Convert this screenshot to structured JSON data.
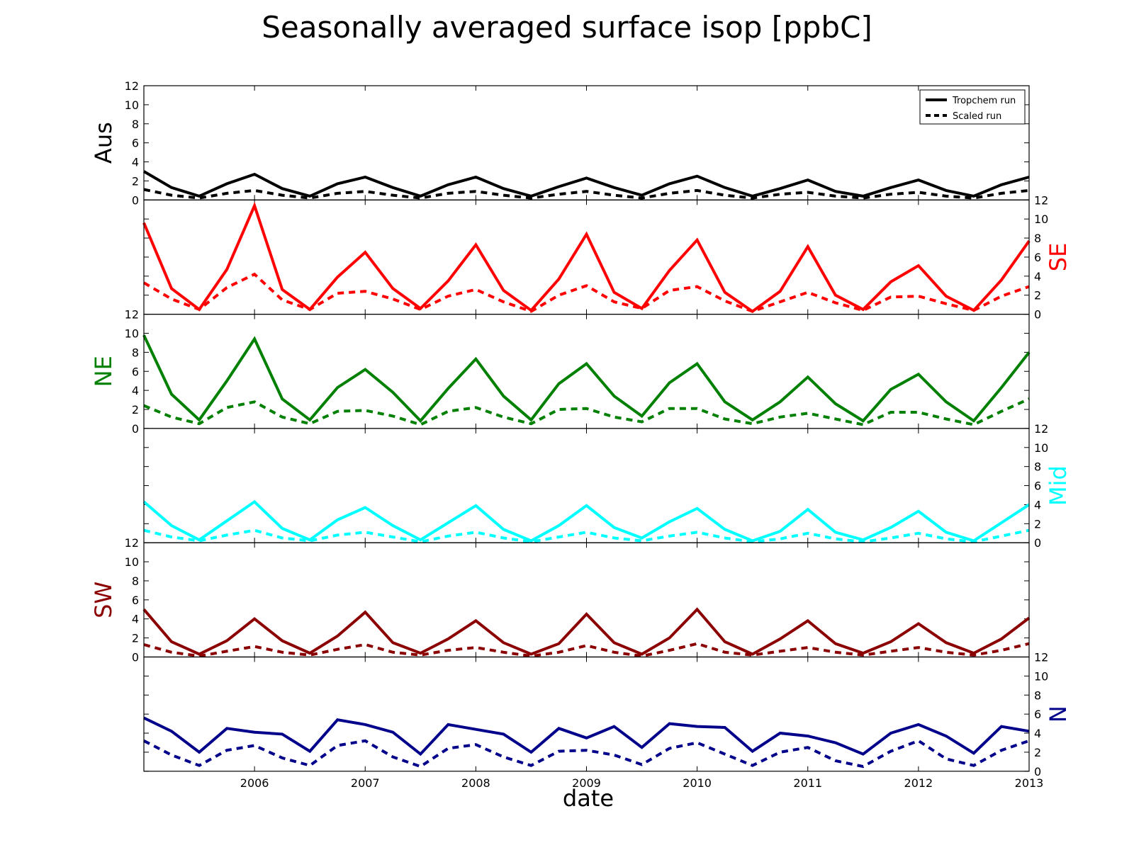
{
  "chart_data": {
    "type": "line",
    "title": "Seasonally averaged surface isop [ppbC]",
    "xlabel": "date",
    "x": [
      "2005-01",
      "2005-04",
      "2005-07",
      "2005-10",
      "2006-01",
      "2006-04",
      "2006-07",
      "2006-10",
      "2007-01",
      "2007-04",
      "2007-07",
      "2007-10",
      "2008-01",
      "2008-04",
      "2008-07",
      "2008-10",
      "2009-01",
      "2009-04",
      "2009-07",
      "2009-10",
      "2010-01",
      "2010-04",
      "2010-07",
      "2010-10",
      "2011-01",
      "2011-04",
      "2011-07",
      "2011-10",
      "2012-01",
      "2012-04",
      "2012-07",
      "2012-10",
      "2013-01"
    ],
    "x_tick_labels": [
      "2006",
      "2007",
      "2008",
      "2009",
      "2010",
      "2011",
      "2012",
      "2013"
    ],
    "ylim": [
      0,
      12
    ],
    "y_tick_labels": [
      "0",
      "2",
      "4",
      "6",
      "8",
      "10",
      "12"
    ],
    "legend": {
      "position": "top-right",
      "entries": [
        {
          "label": "Tropchem run",
          "style": "solid"
        },
        {
          "label": "Scaled run",
          "style": "dashed"
        }
      ]
    },
    "panels": [
      {
        "region": "Aus",
        "color": "#000000",
        "axis_side": "left",
        "series": [
          {
            "name": "Tropchem run",
            "values": [
              3.0,
              1.3,
              0.4,
              1.7,
              2.7,
              1.2,
              0.4,
              1.7,
              2.4,
              1.3,
              0.4,
              1.6,
              2.4,
              1.2,
              0.4,
              1.4,
              2.3,
              1.3,
              0.5,
              1.7,
              2.5,
              1.3,
              0.4,
              1.2,
              2.1,
              0.9,
              0.4,
              1.3,
              2.1,
              1.0,
              0.4,
              1.6,
              2.4
            ]
          },
          {
            "name": "Scaled run",
            "values": [
              1.1,
              0.5,
              0.2,
              0.7,
              1.0,
              0.5,
              0.2,
              0.7,
              0.9,
              0.5,
              0.2,
              0.7,
              0.9,
              0.5,
              0.2,
              0.6,
              0.9,
              0.5,
              0.2,
              0.7,
              1.0,
              0.5,
              0.2,
              0.6,
              0.8,
              0.4,
              0.2,
              0.6,
              0.8,
              0.4,
              0.2,
              0.7,
              1.0
            ]
          }
        ]
      },
      {
        "region": "SE",
        "color": "#ff0000",
        "axis_side": "right",
        "series": [
          {
            "name": "Tropchem run",
            "values": [
              9.6,
              2.7,
              0.5,
              4.7,
              11.4,
              2.6,
              0.5,
              3.9,
              6.5,
              2.7,
              0.6,
              3.5,
              7.3,
              2.5,
              0.4,
              3.7,
              8.4,
              2.3,
              0.6,
              4.6,
              7.8,
              2.3,
              0.3,
              2.4,
              7.1,
              2.0,
              0.5,
              3.4,
              5.1,
              1.9,
              0.4,
              3.6,
              7.7
            ]
          },
          {
            "name": "Scaled run",
            "values": [
              3.3,
              1.6,
              0.5,
              2.8,
              4.2,
              1.5,
              0.5,
              2.2,
              2.4,
              1.6,
              0.5,
              1.9,
              2.6,
              1.3,
              0.3,
              2.0,
              3.0,
              1.3,
              0.6,
              2.5,
              2.9,
              1.4,
              0.3,
              1.3,
              2.3,
              1.2,
              0.4,
              1.8,
              1.9,
              1.1,
              0.4,
              1.9,
              2.9
            ]
          }
        ]
      },
      {
        "region": "NE",
        "color": "#008000",
        "axis_side": "left",
        "series": [
          {
            "name": "Tropchem run",
            "values": [
              9.8,
              3.6,
              0.9,
              5.0,
              9.4,
              3.1,
              0.9,
              4.3,
              6.2,
              3.8,
              0.8,
              4.2,
              7.3,
              3.4,
              0.9,
              4.7,
              6.8,
              3.4,
              1.3,
              4.8,
              6.8,
              2.8,
              0.9,
              2.8,
              5.4,
              2.6,
              0.8,
              4.1,
              5.7,
              2.8,
              0.8,
              4.3,
              8.0
            ]
          },
          {
            "name": "Scaled run",
            "values": [
              2.4,
              1.2,
              0.5,
              2.2,
              2.8,
              1.2,
              0.5,
              1.8,
              1.9,
              1.3,
              0.4,
              1.8,
              2.2,
              1.2,
              0.5,
              2.0,
              2.1,
              1.2,
              0.7,
              2.1,
              2.1,
              1.0,
              0.5,
              1.2,
              1.6,
              1.0,
              0.4,
              1.7,
              1.7,
              1.0,
              0.4,
              1.8,
              3.1
            ]
          }
        ]
      },
      {
        "region": "Mid",
        "color": "#00ffff",
        "axis_side": "right",
        "series": [
          {
            "name": "Tropchem run",
            "values": [
              4.3,
              1.8,
              0.3,
              2.3,
              4.3,
              1.5,
              0.3,
              2.4,
              3.7,
              1.8,
              0.3,
              2.1,
              3.9,
              1.4,
              0.2,
              1.8,
              3.9,
              1.6,
              0.5,
              2.2,
              3.6,
              1.4,
              0.2,
              1.2,
              3.5,
              1.1,
              0.3,
              1.6,
              3.3,
              1.1,
              0.2,
              2.1,
              4.0
            ]
          },
          {
            "name": "Scaled run",
            "values": [
              1.3,
              0.6,
              0.2,
              0.8,
              1.3,
              0.5,
              0.2,
              0.8,
              1.1,
              0.6,
              0.1,
              0.7,
              1.1,
              0.5,
              0.1,
              0.6,
              1.1,
              0.5,
              0.2,
              0.7,
              1.1,
              0.5,
              0.1,
              0.4,
              1.0,
              0.4,
              0.1,
              0.5,
              1.0,
              0.4,
              0.1,
              0.7,
              1.3
            ]
          }
        ]
      },
      {
        "region": "SW",
        "color": "#8b0000",
        "axis_side": "left",
        "series": [
          {
            "name": "Tropchem run",
            "values": [
              5.0,
              1.6,
              0.3,
              1.7,
              4.0,
              1.7,
              0.4,
              2.2,
              4.7,
              1.5,
              0.4,
              1.9,
              3.8,
              1.5,
              0.3,
              1.4,
              4.5,
              1.5,
              0.3,
              2.0,
              5.0,
              1.6,
              0.3,
              1.9,
              3.8,
              1.4,
              0.4,
              1.6,
              3.5,
              1.5,
              0.4,
              1.9,
              4.1
            ]
          },
          {
            "name": "Scaled run",
            "values": [
              1.3,
              0.5,
              0.1,
              0.6,
              1.1,
              0.5,
              0.2,
              0.8,
              1.3,
              0.5,
              0.2,
              0.7,
              1.0,
              0.5,
              0.1,
              0.5,
              1.2,
              0.5,
              0.1,
              0.7,
              1.4,
              0.5,
              0.2,
              0.6,
              1.0,
              0.5,
              0.2,
              0.6,
              1.0,
              0.5,
              0.2,
              0.7,
              1.4
            ]
          }
        ]
      },
      {
        "region": "N",
        "color": "#00008b",
        "axis_side": "right",
        "series": [
          {
            "name": "Tropchem run",
            "values": [
              5.6,
              4.2,
              2.0,
              4.5,
              4.1,
              3.9,
              2.1,
              5.4,
              4.9,
              4.1,
              1.8,
              4.9,
              4.4,
              3.9,
              2.0,
              4.5,
              3.5,
              4.7,
              2.5,
              5.0,
              4.7,
              4.6,
              2.1,
              4.0,
              3.7,
              3.0,
              1.8,
              4.0,
              4.9,
              3.7,
              1.9,
              4.7,
              4.2
            ]
          },
          {
            "name": "Scaled run",
            "values": [
              3.2,
              1.7,
              0.6,
              2.2,
              2.7,
              1.4,
              0.6,
              2.7,
              3.2,
              1.5,
              0.5,
              2.4,
              2.8,
              1.5,
              0.6,
              2.1,
              2.2,
              1.7,
              0.7,
              2.4,
              3.0,
              1.8,
              0.6,
              2.0,
              2.5,
              1.1,
              0.5,
              2.1,
              3.2,
              1.3,
              0.6,
              2.2,
              3.2
            ]
          }
        ]
      }
    ]
  }
}
